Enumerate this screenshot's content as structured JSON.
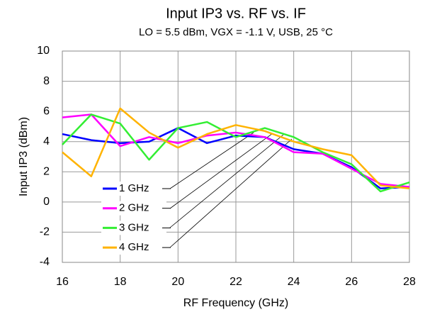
{
  "chart_data": {
    "type": "line",
    "title": "Input IP3 vs. RF vs. IF",
    "subtitle": "LO = 5.5 dBm, VGX = -1.1 V, USB, 25 °C",
    "x_label": "RF Frequency (GHz)",
    "y_label": "Input IP3 (dBm)",
    "x": [
      16,
      17,
      18,
      19,
      20,
      21,
      22,
      23,
      24,
      25,
      26,
      27,
      28
    ],
    "series": [
      {
        "name": "1 GHz",
        "color": "#0000ff",
        "values": [
          4.5,
          4.1,
          3.9,
          4.0,
          4.9,
          3.9,
          4.4,
          4.3,
          3.5,
          3.2,
          2.3,
          0.9,
          1.0
        ]
      },
      {
        "name": "2 GHz",
        "color": "#ff00ff",
        "values": [
          5.6,
          5.8,
          3.7,
          4.3,
          3.9,
          4.4,
          4.6,
          4.3,
          3.3,
          3.2,
          2.2,
          1.2,
          1.0
        ]
      },
      {
        "name": "3 GHz",
        "color": "#33ee33",
        "values": [
          3.8,
          5.8,
          5.2,
          2.8,
          4.9,
          5.3,
          4.3,
          4.9,
          4.3,
          3.3,
          2.5,
          0.7,
          1.3
        ]
      },
      {
        "name": "4 GHz",
        "color": "#ffb300",
        "values": [
          3.3,
          1.7,
          6.2,
          4.6,
          3.6,
          4.5,
          5.1,
          4.7,
          4.0,
          3.5,
          3.1,
          1.1,
          0.9
        ]
      }
    ],
    "xlim": [
      16,
      28
    ],
    "xticks": [
      16,
      18,
      20,
      22,
      24,
      26,
      28
    ],
    "ylim": [
      -4,
      10
    ],
    "yticks": [
      -4,
      -2,
      0,
      2,
      4,
      6,
      8,
      10
    ],
    "grid": true
  }
}
